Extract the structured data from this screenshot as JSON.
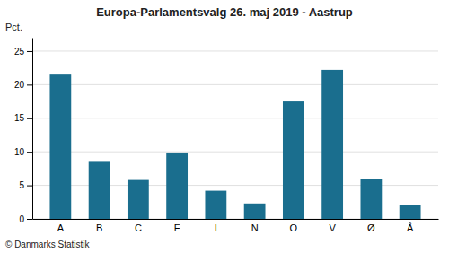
{
  "chart_data": {
    "type": "bar",
    "title": "Europa-Parlamentsvalg 26. maj 2019 - Aastrup",
    "categories": [
      "A",
      "B",
      "C",
      "F",
      "I",
      "N",
      "O",
      "V",
      "Ø",
      "Å"
    ],
    "values": [
      21.5,
      8.5,
      5.8,
      9.9,
      4.2,
      2.3,
      17.5,
      22.2,
      6.0,
      2.1
    ],
    "color": "#1a6e8e",
    "ylabel": "Pct.",
    "ylim": [
      0,
      27
    ],
    "yticks": [
      0,
      5,
      10,
      15,
      20,
      25
    ],
    "grid": true,
    "annotations": [
      "© Danmarks Statistik"
    ]
  }
}
